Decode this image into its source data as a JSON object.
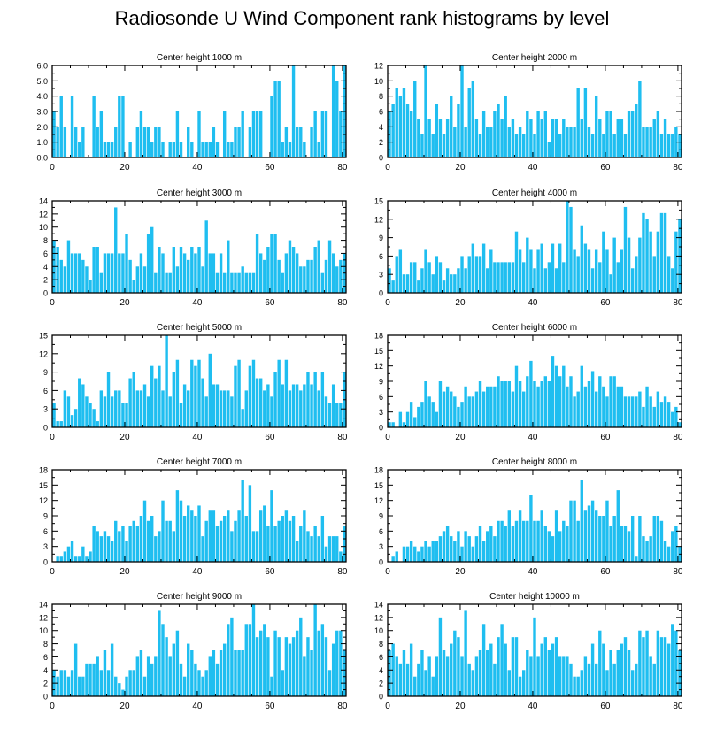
{
  "page_title": "Radiosonde U Wind Component rank histograms by level",
  "colors": {
    "bar": "#1fbef0",
    "frame": "#000000",
    "background": "#ffffff"
  },
  "chart_data": [
    {
      "type": "bar",
      "title": "Center height 1000 m",
      "x_ticks": [
        0,
        20,
        40,
        60,
        80
      ],
      "ylim": [
        0,
        6
      ],
      "y_ticks": [
        "0.0",
        "1.0",
        "2.0",
        "3.0",
        "4.0",
        "5.0",
        "6.0"
      ],
      "values": [
        3,
        2,
        4,
        2,
        0,
        4,
        2,
        1,
        2,
        0,
        0,
        4,
        2,
        3,
        1,
        1,
        1,
        2,
        4,
        4,
        0,
        1,
        0,
        2,
        3,
        2,
        2,
        1,
        2,
        2,
        1,
        0,
        1,
        1,
        3,
        1,
        0,
        2,
        1,
        0,
        3,
        1,
        1,
        1,
        2,
        1,
        0,
        3,
        1,
        1,
        2,
        2,
        3,
        0,
        2,
        3,
        3,
        3,
        0,
        0,
        4,
        5,
        5,
        1,
        2,
        1,
        6,
        2,
        2,
        1,
        0,
        2,
        3,
        1,
        3,
        3,
        0,
        6,
        5,
        3,
        6
      ]
    },
    {
      "type": "bar",
      "title": "Center height 2000 m",
      "x_ticks": [
        0,
        20,
        40,
        60,
        80
      ],
      "ylim": [
        0,
        12
      ],
      "y_ticks": [
        "0",
        "2",
        "4",
        "6",
        "8",
        "10",
        "12"
      ],
      "values": [
        6,
        7,
        9,
        8,
        9,
        7,
        6,
        10,
        5,
        3,
        12,
        5,
        3,
        7,
        5,
        3,
        5,
        8,
        4,
        7,
        12,
        4,
        9,
        10,
        5,
        3,
        6,
        4,
        4,
        6,
        7,
        5,
        8,
        4,
        5,
        3,
        4,
        3,
        6,
        5,
        3,
        6,
        5,
        6,
        2,
        5,
        5,
        3,
        5,
        4,
        4,
        4,
        9,
        5,
        9,
        4,
        3,
        8,
        5,
        3,
        6,
        6,
        3,
        5,
        5,
        3,
        6,
        6,
        7,
        10,
        4,
        4,
        4,
        5,
        6,
        3,
        5,
        3,
        3,
        4,
        3
      ]
    },
    {
      "type": "bar",
      "title": "Center height 3000 m",
      "x_ticks": [
        0,
        20,
        40,
        60,
        80
      ],
      "ylim": [
        0,
        14
      ],
      "y_ticks": [
        "0",
        "2",
        "4",
        "6",
        "8",
        "10",
        "12",
        "14"
      ],
      "values": [
        8,
        7,
        5,
        4,
        8,
        6,
        6,
        6,
        5,
        4,
        2,
        7,
        7,
        3,
        6,
        6,
        6,
        13,
        6,
        6,
        9,
        5,
        2,
        4,
        6,
        4,
        9,
        10,
        3,
        7,
        6,
        3,
        3,
        7,
        4,
        7,
        6,
        5,
        7,
        6,
        7,
        4,
        11,
        6,
        6,
        3,
        6,
        3,
        8,
        3,
        3,
        3,
        4,
        3,
        3,
        3,
        9,
        6,
        5,
        7,
        9,
        9,
        5,
        3,
        6,
        8,
        7,
        6,
        4,
        4,
        5,
        5,
        7,
        8,
        3,
        5,
        8,
        6,
        4,
        5,
        6
      ]
    },
    {
      "type": "bar",
      "title": "Center height 4000 m",
      "x_ticks": [
        0,
        20,
        40,
        60,
        80
      ],
      "ylim": [
        0,
        15
      ],
      "y_ticks": [
        "0",
        "3",
        "6",
        "9",
        "12",
        "15"
      ],
      "values": [
        4,
        2,
        6,
        7,
        3,
        3,
        5,
        5,
        2,
        4,
        7,
        5,
        3,
        6,
        5,
        2,
        4,
        3,
        3,
        4,
        6,
        4,
        6,
        8,
        6,
        6,
        8,
        4,
        7,
        5,
        5,
        5,
        5,
        5,
        5,
        10,
        7,
        5,
        9,
        7,
        4,
        7,
        8,
        4,
        5,
        8,
        4,
        8,
        5,
        15,
        14,
        7,
        6,
        11,
        8,
        7,
        4,
        7,
        5,
        10,
        7,
        3,
        9,
        5,
        7,
        14,
        9,
        4,
        6,
        9,
        13,
        12,
        10,
        6,
        10,
        13,
        13,
        6,
        4,
        10,
        12
      ]
    },
    {
      "type": "bar",
      "title": "Center height 5000 m",
      "x_ticks": [
        0,
        20,
        40,
        60,
        80
      ],
      "ylim": [
        0,
        15
      ],
      "y_ticks": [
        "0",
        "3",
        "6",
        "9",
        "12",
        "15"
      ],
      "values": [
        4,
        1,
        1,
        6,
        5,
        2,
        3,
        8,
        7,
        5,
        4,
        3,
        1,
        6,
        5,
        9,
        5,
        6,
        6,
        4,
        4,
        8,
        9,
        6,
        6,
        7,
        5,
        10,
        8,
        10,
        6,
        15,
        5,
        9,
        11,
        4,
        7,
        6,
        11,
        10,
        11,
        8,
        5,
        12,
        7,
        7,
        6,
        6,
        6,
        5,
        10,
        11,
        3,
        6,
        10,
        11,
        8,
        8,
        6,
        7,
        5,
        9,
        11,
        7,
        11,
        6,
        7,
        7,
        6,
        7,
        9,
        7,
        9,
        6,
        9,
        5,
        4,
        7,
        4,
        4,
        9
      ]
    },
    {
      "type": "bar",
      "title": "Center height 6000 m",
      "x_ticks": [
        0,
        20,
        40,
        60,
        80
      ],
      "ylim": [
        0,
        18
      ],
      "y_ticks": [
        "0",
        "3",
        "6",
        "9",
        "12",
        "15",
        "18"
      ],
      "values": [
        1,
        1,
        0,
        3,
        1,
        3,
        5,
        2,
        4,
        5,
        9,
        6,
        5,
        3,
        9,
        7,
        8,
        7,
        6,
        4,
        5,
        8,
        6,
        6,
        7,
        9,
        7,
        8,
        8,
        8,
        10,
        9,
        9,
        9,
        7,
        12,
        9,
        7,
        10,
        13,
        9,
        8,
        9,
        10,
        9,
        14,
        12,
        10,
        12,
        8,
        10,
        6,
        7,
        12,
        8,
        9,
        11,
        7,
        10,
        8,
        6,
        10,
        10,
        8,
        8,
        6,
        6,
        6,
        6,
        7,
        4,
        8,
        6,
        4,
        7,
        5,
        6,
        5,
        3,
        4,
        1
      ]
    },
    {
      "type": "bar",
      "title": "Center height 7000 m",
      "x_ticks": [
        0,
        20,
        40,
        60,
        80
      ],
      "ylim": [
        0,
        18
      ],
      "y_ticks": [
        "0",
        "3",
        "6",
        "9",
        "12",
        "15",
        "18"
      ],
      "values": [
        0,
        1,
        1,
        2,
        3,
        4,
        1,
        1,
        3,
        1,
        2,
        7,
        6,
        5,
        6,
        5,
        4,
        8,
        6,
        7,
        4,
        7,
        8,
        7,
        9,
        12,
        8,
        9,
        5,
        6,
        12,
        8,
        8,
        6,
        14,
        12,
        9,
        11,
        10,
        9,
        11,
        5,
        8,
        10,
        10,
        7,
        8,
        9,
        10,
        6,
        8,
        10,
        16,
        9,
        15,
        6,
        6,
        10,
        11,
        7,
        14,
        7,
        8,
        9,
        10,
        8,
        9,
        4,
        7,
        10,
        6,
        5,
        7,
        5,
        9,
        3,
        5,
        5,
        5,
        2,
        7
      ]
    },
    {
      "type": "bar",
      "title": "Center height 8000 m",
      "x_ticks": [
        0,
        20,
        40,
        60,
        80
      ],
      "ylim": [
        0,
        18
      ],
      "y_ticks": [
        "0",
        "3",
        "6",
        "9",
        "12",
        "15",
        "18"
      ],
      "values": [
        0,
        1,
        2,
        0,
        3,
        3,
        4,
        3,
        2,
        3,
        4,
        3,
        4,
        4,
        5,
        6,
        7,
        5,
        4,
        6,
        3,
        6,
        5,
        3,
        5,
        7,
        4,
        6,
        7,
        5,
        8,
        8,
        7,
        10,
        7,
        8,
        10,
        8,
        8,
        13,
        8,
        8,
        10,
        7,
        6,
        5,
        10,
        6,
        8,
        7,
        12,
        12,
        8,
        16,
        10,
        11,
        12,
        10,
        9,
        9,
        12,
        7,
        9,
        14,
        7,
        7,
        6,
        9,
        1,
        9,
        5,
        4,
        5,
        9,
        9,
        8,
        4,
        3,
        6,
        7,
        3
      ]
    },
    {
      "type": "bar",
      "title": "Center height 9000 m",
      "x_ticks": [
        0,
        20,
        40,
        60,
        80
      ],
      "ylim": [
        0,
        14
      ],
      "y_ticks": [
        "0",
        "2",
        "4",
        "6",
        "8",
        "10",
        "12",
        "14"
      ],
      "values": [
        4,
        3,
        4,
        4,
        3,
        4,
        8,
        3,
        3,
        5,
        5,
        5,
        6,
        4,
        7,
        4,
        8,
        3,
        2,
        1,
        3,
        4,
        4,
        6,
        7,
        3,
        6,
        5,
        6,
        13,
        11,
        9,
        6,
        8,
        10,
        5,
        3,
        8,
        7,
        5,
        4,
        3,
        4,
        6,
        7,
        5,
        7,
        8,
        11,
        12,
        7,
        7,
        7,
        11,
        11,
        14,
        9,
        10,
        11,
        9,
        3,
        10,
        9,
        4,
        9,
        8,
        9,
        10,
        12,
        6,
        9,
        7,
        14,
        10,
        11,
        9,
        4,
        8,
        10,
        10,
        7
      ]
    },
    {
      "type": "bar",
      "title": "Center height 10000 m",
      "x_ticks": [
        0,
        20,
        40,
        60,
        80
      ],
      "ylim": [
        0,
        14
      ],
      "y_ticks": [
        "0",
        "2",
        "4",
        "6",
        "8",
        "10",
        "12",
        "14"
      ],
      "values": [
        7,
        8,
        6,
        5,
        7,
        5,
        8,
        3,
        5,
        7,
        4,
        6,
        3,
        6,
        12,
        7,
        6,
        8,
        10,
        9,
        6,
        13,
        5,
        4,
        6,
        7,
        11,
        7,
        8,
        5,
        9,
        11,
        8,
        4,
        9,
        9,
        3,
        4,
        7,
        6,
        12,
        6,
        8,
        9,
        7,
        8,
        9,
        6,
        6,
        6,
        5,
        3,
        3,
        4,
        6,
        5,
        8,
        5,
        10,
        8,
        4,
        7,
        5,
        7,
        8,
        9,
        7,
        4,
        5,
        10,
        9,
        10,
        6,
        5,
        10,
        9,
        9,
        8,
        11,
        10,
        7
      ]
    }
  ]
}
